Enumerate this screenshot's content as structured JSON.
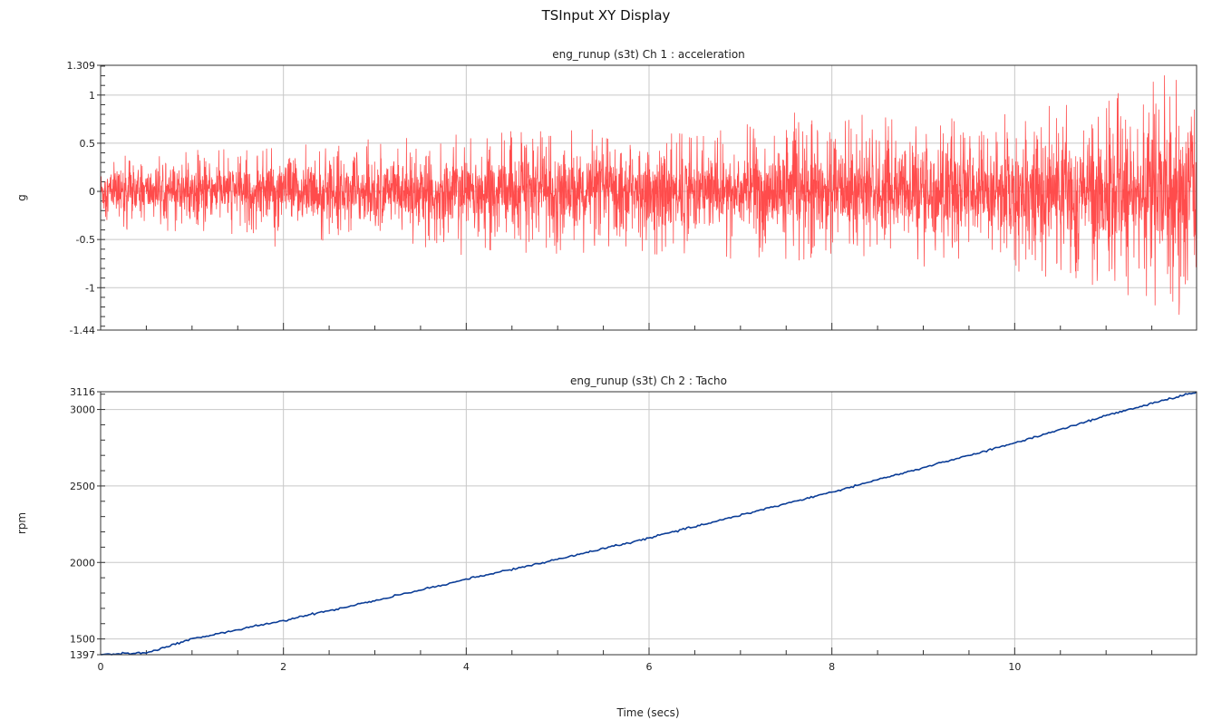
{
  "window": {
    "title": "TSInput XY Display"
  },
  "x_axis": {
    "label": "Time (secs)"
  },
  "chart_data": [
    {
      "type": "line",
      "title": "eng_runup (s3t)  Ch 1 : acceleration",
      "ylabel": "g",
      "xlim": [
        0,
        11.99
      ],
      "ylim": [
        -1.44,
        1.309
      ],
      "x_tick_labels": [],
      "y_ticks": [
        -1.44,
        -1,
        -0.5,
        0,
        0.5,
        1,
        1.309
      ],
      "y_tick_labels": [
        "-1.44",
        "-1",
        "-0.5",
        "0",
        "0.5",
        "1",
        "1.309"
      ],
      "grid": true,
      "color": "#ff4c4c",
      "series": [
        {
          "values_description": "",
          "x": [
            0,
            1,
            2,
            3,
            4,
            5,
            6,
            7,
            8,
            9,
            10,
            11,
            11.5,
            11.99
          ],
          "amplitude": [
            0.35,
            0.4,
            0.45,
            0.5,
            0.55,
            0.6,
            0.62,
            0.65,
            0.68,
            0.72,
            0.78,
            0.9,
            1.1,
            1.35
          ]
        }
      ]
    },
    {
      "type": "line",
      "title": "eng_runup (s3t)  Ch 2 : Tacho",
      "ylabel": "rpm",
      "xlim": [
        0,
        11.99
      ],
      "ylim": [
        1397,
        3116
      ],
      "x_ticks": [
        0,
        2,
        4,
        6,
        8,
        10
      ],
      "x_tick_labels": [
        "0",
        "2",
        "4",
        "6",
        "8",
        "10"
      ],
      "y_ticks": [
        1397,
        1500,
        2000,
        2500,
        3000,
        3116
      ],
      "y_tick_labels": [
        "1397",
        "1500",
        "2000",
        "2500",
        "3000",
        "3116"
      ],
      "grid": true,
      "color": "#0a3c96",
      "series": [
        {
          "x": [
            0,
            0.5,
            1,
            2,
            3,
            4,
            5,
            6,
            7,
            8,
            9,
            10,
            11,
            11.99
          ],
          "values": [
            1397,
            1410,
            1500,
            1620,
            1750,
            1890,
            2020,
            2160,
            2310,
            2460,
            2620,
            2780,
            2960,
            3116
          ]
        }
      ]
    }
  ]
}
